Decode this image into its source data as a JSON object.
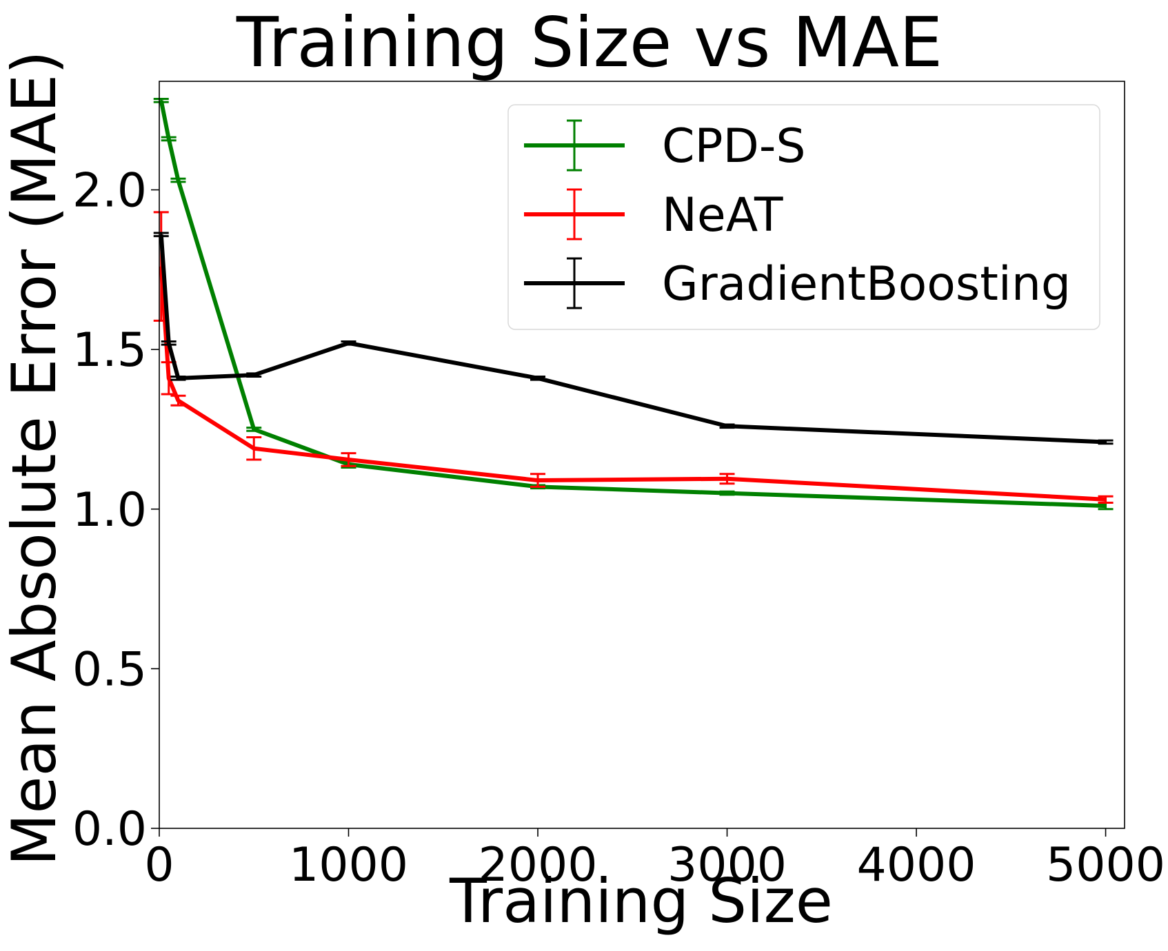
{
  "chart_data": {
    "type": "line",
    "title": "Training Size vs MAE",
    "xlabel": "Training Size",
    "ylabel": "Mean Absolute Error (MAE)",
    "xlim": [
      0,
      5100
    ],
    "ylim": [
      0.0,
      2.34
    ],
    "xticks": [
      0,
      1000,
      2000,
      3000,
      4000,
      5000
    ],
    "xtick_labels": [
      "0",
      "1000",
      "2000",
      "3000",
      "4000",
      "5000"
    ],
    "yticks": [
      0.0,
      0.5,
      1.0,
      1.5,
      2.0
    ],
    "ytick_labels": [
      "0.0",
      "0.5",
      "1.0",
      "1.5",
      "2.0"
    ],
    "grid": false,
    "legend_position": "top-right",
    "series": [
      {
        "name": "CPD-S",
        "color": "#008000",
        "x": [
          10,
          50,
          100,
          500,
          1000,
          2000,
          3000,
          5000
        ],
        "y": [
          2.28,
          2.16,
          2.03,
          1.25,
          1.14,
          1.07,
          1.05,
          1.01
        ],
        "err": [
          0.005,
          0.005,
          0.005,
          0.005,
          0.01,
          0.005,
          0.005,
          0.01
        ]
      },
      {
        "name": "NeAT",
        "color": "#ff0000",
        "x": [
          10,
          50,
          100,
          500,
          1000,
          2000,
          3000,
          5000
        ],
        "y": [
          1.76,
          1.41,
          1.34,
          1.19,
          1.155,
          1.09,
          1.095,
          1.03
        ],
        "err": [
          0.17,
          0.05,
          0.015,
          0.035,
          0.02,
          0.02,
          0.015,
          0.01
        ]
      },
      {
        "name": "GradientBoosting",
        "color": "#000000",
        "x": [
          10,
          50,
          100,
          500,
          1000,
          2000,
          3000,
          5000
        ],
        "y": [
          1.86,
          1.52,
          1.41,
          1.42,
          1.52,
          1.41,
          1.26,
          1.21
        ],
        "err": [
          0.005,
          0.005,
          0.005,
          0.005,
          0.005,
          0.005,
          0.005,
          0.005
        ]
      }
    ]
  }
}
